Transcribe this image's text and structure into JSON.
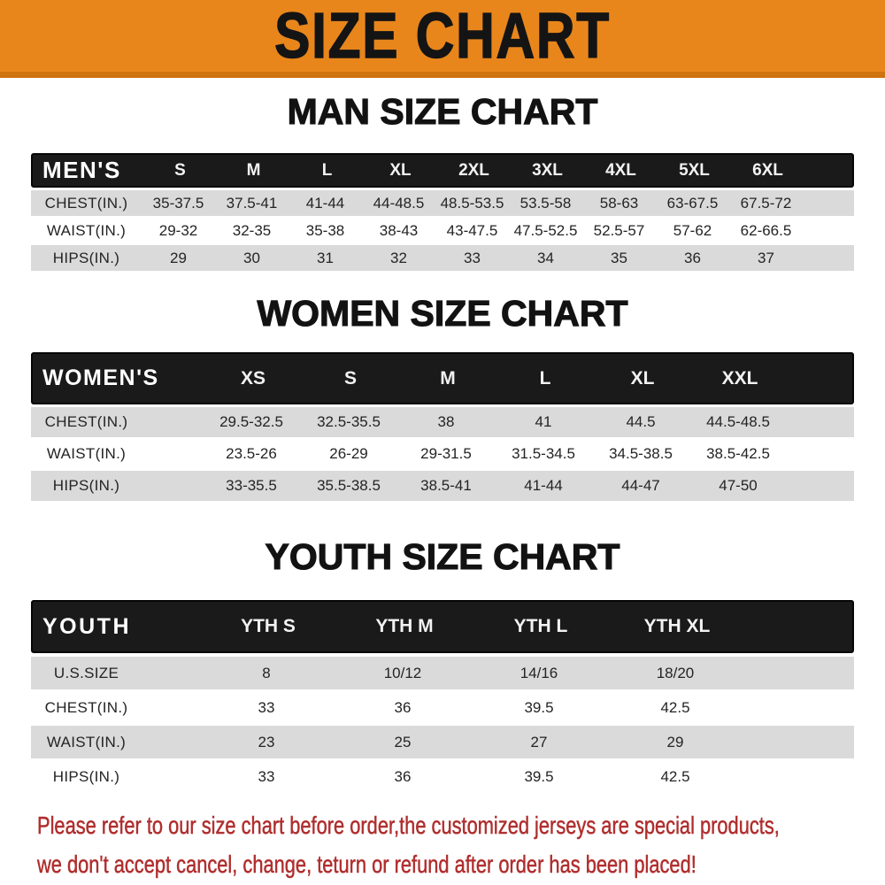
{
  "banner": {
    "title": "SIZE CHART",
    "bg_color": "#E8861C",
    "accent_color": "#CF730E"
  },
  "sections": [
    {
      "id": "men",
      "heading": "MAN SIZE CHART",
      "corner_label": "MEN'S",
      "columns": [
        "S",
        "M",
        "L",
        "XL",
        "2XL",
        "3XL",
        "4XL",
        "5XL",
        "6XL"
      ],
      "rows": [
        {
          "label": "CHEST(IN.)",
          "values": [
            "35-37.5",
            "37.5-41",
            "41-44",
            "44-48.5",
            "48.5-53.5",
            "53.5-58",
            "58-63",
            "63-67.5",
            "67.5-72"
          ]
        },
        {
          "label": "WAIST(IN.)",
          "values": [
            "29-32",
            "32-35",
            "35-38",
            "38-43",
            "43-47.5",
            "47.5-52.5",
            "52.5-57",
            "57-62",
            "62-66.5"
          ]
        },
        {
          "label": "HIPS(IN.)",
          "values": [
            "29",
            "30",
            "31",
            "32",
            "33",
            "34",
            "35",
            "36",
            "37"
          ]
        }
      ]
    },
    {
      "id": "women",
      "heading": "WOMEN SIZE CHART",
      "corner_label": "WOMEN'S",
      "columns": [
        "XS",
        "S",
        "M",
        "L",
        "XL",
        "XXL"
      ],
      "rows": [
        {
          "label": "CHEST(IN.)",
          "values": [
            "29.5-32.5",
            "32.5-35.5",
            "38",
            "41",
            "44.5",
            "44.5-48.5"
          ]
        },
        {
          "label": "WAIST(IN.)",
          "values": [
            "23.5-26",
            "26-29",
            "29-31.5",
            "31.5-34.5",
            "34.5-38.5",
            "38.5-42.5"
          ]
        },
        {
          "label": "HIPS(IN.)",
          "values": [
            "33-35.5",
            "35.5-38.5",
            "38.5-41",
            "41-44",
            "44-47",
            "47-50"
          ]
        }
      ]
    },
    {
      "id": "youth",
      "heading": "YOUTH SIZE CHART",
      "corner_label": "YOUTH",
      "columns": [
        "YTH S",
        "YTH M",
        "YTH L",
        "YTH XL"
      ],
      "rows": [
        {
          "label": "U.S.SIZE",
          "values": [
            "8",
            "10/12",
            "14/16",
            "18/20"
          ]
        },
        {
          "label": "CHEST(IN.)",
          "values": [
            "33",
            "36",
            "39.5",
            "42.5"
          ]
        },
        {
          "label": "WAIST(IN.)",
          "values": [
            "23",
            "25",
            "27",
            "29"
          ]
        },
        {
          "label": "HIPS(IN.)",
          "values": [
            "33",
            "36",
            "39.5",
            "42.5"
          ]
        }
      ]
    }
  ],
  "footer": {
    "line1": "Please refer to our size chart before order,the customized jerseys are special products,",
    "line2": "we don't accept cancel, change, teturn or refund after order has been placed!",
    "text_color": "#B02E2E"
  }
}
